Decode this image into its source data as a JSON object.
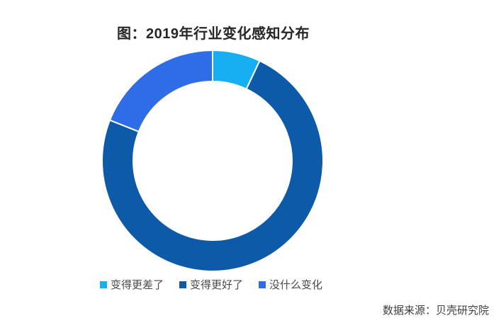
{
  "page": {
    "title": "图：2019年行业变化感知分布",
    "source": "数据来源：贝壳研究院"
  },
  "chart_data": {
    "type": "pie",
    "subtype": "donut",
    "title": "图：2019年行业变化感知分布",
    "categories": [
      "变得更差了",
      "变得更好了",
      "没什么变化"
    ],
    "values": [
      7,
      74,
      19
    ],
    "unit": "percent",
    "colors": [
      "#18AEF2",
      "#0D5AA8",
      "#2E6DE5"
    ],
    "start_angle_deg": 0,
    "direction": "clockwise",
    "inner_radius_ratio": 0.72,
    "separator_color": "#ffffff",
    "legend_position": "bottom",
    "data_labels": false,
    "source_note": "数据来源：贝壳研究院"
  }
}
